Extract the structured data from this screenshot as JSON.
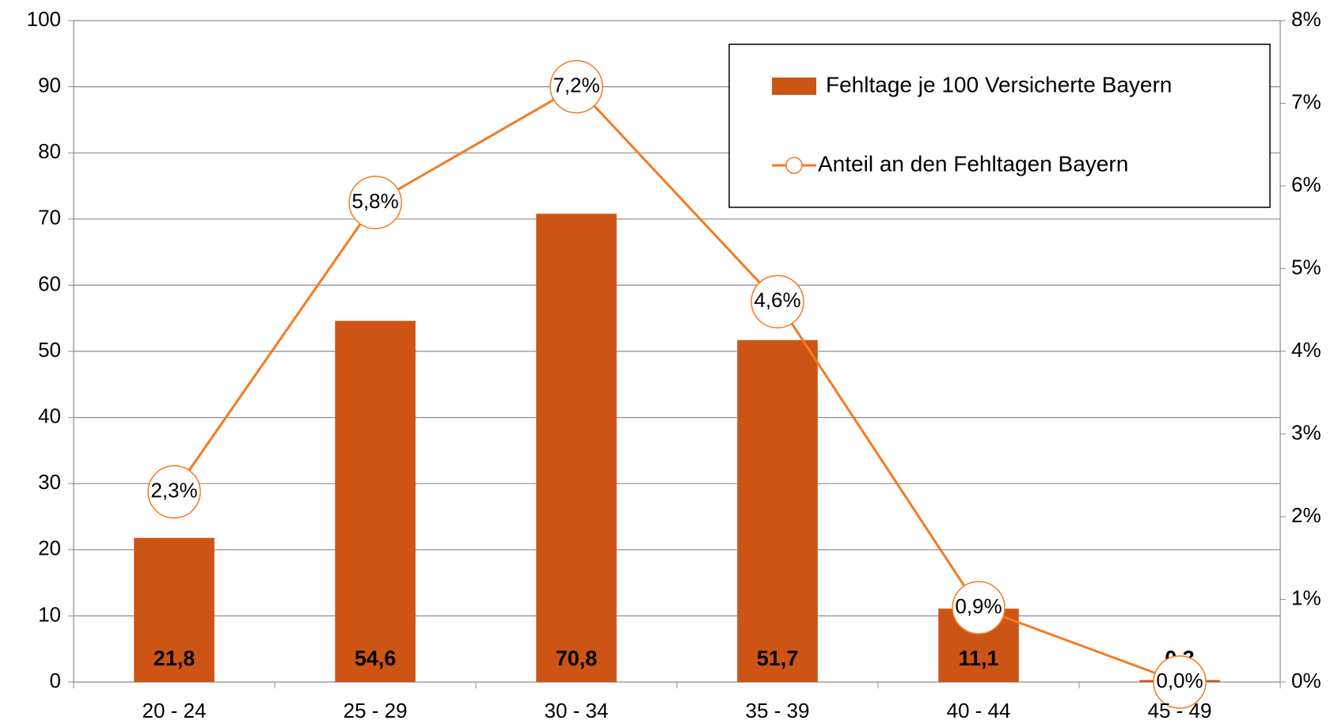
{
  "chart_data": {
    "type": "bar",
    "categories": [
      "20 - 24",
      "25 - 29",
      "30 - 34",
      "35 - 39",
      "40 - 44",
      "45 - 49"
    ],
    "series": [
      {
        "name": "Fehltage je 100 Versicherte Bayern",
        "type": "bar",
        "color": "#cc5515",
        "values": [
          21.8,
          54.6,
          70.8,
          51.7,
          11.1,
          0.3
        ],
        "value_labels": [
          "21,8",
          "54,6",
          "70,8",
          "51,7",
          "11,1",
          "0,3"
        ]
      },
      {
        "name": "Anteil an den Fehltagen Bayern",
        "type": "line",
        "axis": "y2",
        "color": "#f47a20",
        "values": [
          2.3,
          5.8,
          7.2,
          4.6,
          0.9,
          0.0
        ],
        "value_labels": [
          "2,3%",
          "5,8%",
          "7,2%",
          "4,6%",
          "0,9%",
          "0,0%"
        ]
      }
    ],
    "ylim": [
      0,
      100
    ],
    "yticks": [
      0,
      10,
      20,
      30,
      40,
      50,
      60,
      70,
      80,
      90,
      100
    ],
    "y2lim": [
      0,
      8
    ],
    "y2ticks": [
      {
        "value": 0,
        "label": "0%"
      },
      {
        "value": 1,
        "label": "1%"
      },
      {
        "value": 2,
        "label": "2%"
      },
      {
        "value": 3,
        "label": "3%"
      },
      {
        "value": 4,
        "label": "4%"
      },
      {
        "value": 5,
        "label": "5%"
      },
      {
        "value": 6,
        "label": "6%"
      },
      {
        "value": 7,
        "label": "7%"
      },
      {
        "value": 8,
        "label": "8%"
      }
    ],
    "grid": true,
    "legend": "top-right"
  }
}
